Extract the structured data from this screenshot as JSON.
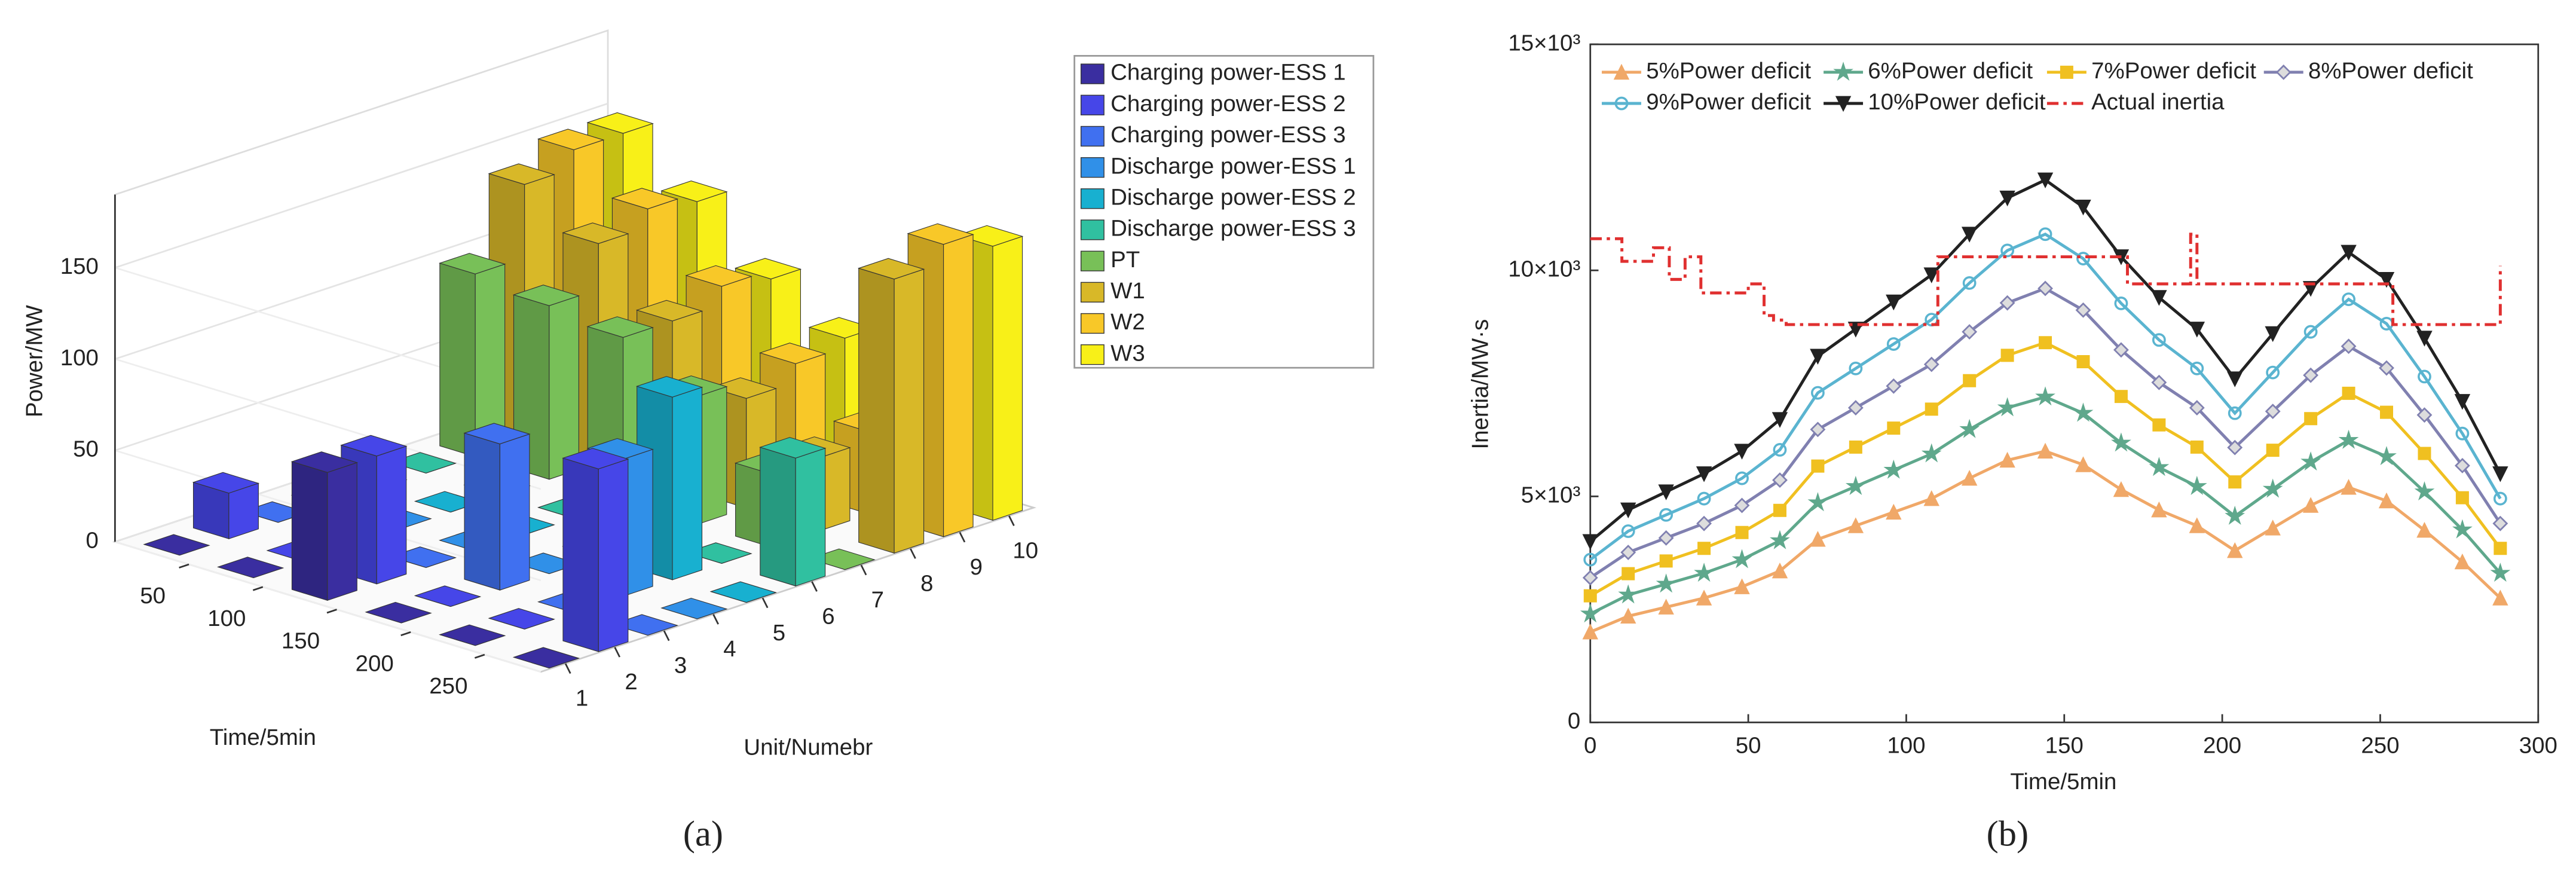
{
  "chart_data": [
    {
      "type": "bar3d",
      "caption": "(a)",
      "x_label": "Time/5min",
      "y_label": "Unit/Numebr",
      "z_label": "Power/MW",
      "x": [
        25,
        75,
        125,
        175,
        225,
        275
      ],
      "xlim": [
        0,
        288
      ],
      "xticks": [
        50,
        100,
        150,
        200,
        250
      ],
      "yticks": [
        1,
        2,
        3,
        4,
        5,
        6,
        7,
        8,
        9,
        10
      ],
      "zlim": [
        0,
        190
      ],
      "zticks": [
        0,
        50,
        100,
        150
      ],
      "series": [
        {
          "name": "Charging power-ESS 1",
          "color": "#3a2ea0",
          "values": [
            0,
            0,
            70,
            0,
            0,
            0
          ]
        },
        {
          "name": "Charging power-ESS 2",
          "color": "#4646e8",
          "values": [
            25,
            0,
            70,
            0,
            0,
            100
          ]
        },
        {
          "name": "Charging power-ESS 3",
          "color": "#4070f0",
          "values": [
            0,
            30,
            0,
            80,
            0,
            0
          ]
        },
        {
          "name": "Discharge power-ESS 1",
          "color": "#3090e8",
          "values": [
            0,
            0,
            0,
            0,
            75,
            0
          ]
        },
        {
          "name": "Discharge power-ESS 2",
          "color": "#18b0d0",
          "values": [
            0,
            0,
            0,
            0,
            100,
            0
          ]
        },
        {
          "name": "Discharge power-ESS 3",
          "color": "#30c0a0",
          "values": [
            0,
            0,
            0,
            0,
            0,
            70
          ]
        },
        {
          "name": "PT",
          "color": "#78c058",
          "values": [
            100,
            95,
            90,
            70,
            40,
            0
          ]
        },
        {
          "name": "W1",
          "color": "#d8b828",
          "values": [
            140,
            120,
            90,
            60,
            40,
            150
          ]
        },
        {
          "name": "W2",
          "color": "#f8c828",
          "values": [
            150,
            130,
            100,
            70,
            45,
            160
          ]
        },
        {
          "name": "W3",
          "color": "#f8f018",
          "values": [
            150,
            125,
            95,
            75,
            50,
            150
          ]
        }
      ]
    },
    {
      "type": "line",
      "caption": "(b)",
      "x_label": "Time/5min",
      "y_label": "Inertia/MW·s",
      "x": [
        0,
        12,
        24,
        36,
        48,
        60,
        72,
        84,
        96,
        108,
        120,
        132,
        144,
        156,
        168,
        180,
        192,
        204,
        216,
        228,
        240,
        252,
        264,
        276,
        288
      ],
      "xlim": [
        0,
        300
      ],
      "xticks": [
        0,
        50,
        100,
        150,
        200,
        250,
        300
      ],
      "ylim": [
        0,
        15000
      ],
      "yticks": [
        0,
        {
          "value": 5000,
          "label": "5×10³"
        },
        {
          "value": 10000,
          "label": "10×10³"
        },
        {
          "value": 15000,
          "label": "15×10³"
        }
      ],
      "series": [
        {
          "name": "5%Power deficit",
          "color": "#f0a868",
          "marker": "triangle",
          "values": [
            2000,
            2350,
            2550,
            2750,
            3000,
            3350,
            4050,
            4350,
            4650,
            4950,
            5400,
            5800,
            6000,
            5700,
            5150,
            4700,
            4350,
            3800,
            4300,
            4800,
            5200,
            4900,
            4250,
            3550,
            2750
          ]
        },
        {
          "name": "6%Power deficit",
          "color": "#5fa88c",
          "marker": "star",
          "values": [
            2400,
            2820,
            3060,
            3300,
            3600,
            4020,
            4860,
            5220,
            5580,
            5940,
            6480,
            6960,
            7200,
            6840,
            6180,
            5640,
            5220,
            4560,
            5160,
            5760,
            6240,
            5880,
            5100,
            4260,
            3300
          ]
        },
        {
          "name": "7%Power deficit",
          "color": "#f0c020",
          "marker": "square",
          "values": [
            2800,
            3290,
            3570,
            3850,
            4200,
            4690,
            5670,
            6090,
            6510,
            6930,
            7560,
            8120,
            8400,
            7980,
            7210,
            6580,
            6090,
            5320,
            6020,
            6720,
            7280,
            6860,
            5950,
            4970,
            3850
          ]
        },
        {
          "name": "8%Power deficit",
          "color": "#8080b0",
          "marker": "diamond",
          "values": [
            3200,
            3760,
            4080,
            4400,
            4800,
            5360,
            6480,
            6960,
            7440,
            7920,
            8640,
            9280,
            9600,
            9120,
            8240,
            7520,
            6960,
            6080,
            6880,
            7680,
            8320,
            7840,
            6800,
            5680,
            4400
          ]
        },
        {
          "name": "9%Power deficit",
          "color": "#5ab4d0",
          "marker": "circle",
          "values": [
            3600,
            4230,
            4590,
            4950,
            5400,
            6030,
            7290,
            7830,
            8370,
            8910,
            9720,
            10440,
            10800,
            10260,
            9270,
            8460,
            7830,
            6840,
            7740,
            8640,
            9360,
            8820,
            7650,
            6390,
            4950
          ]
        },
        {
          "name": "10%Power deficit",
          "color": "#222222",
          "marker": "triangle-down",
          "values": [
            4000,
            4700,
            5100,
            5500,
            6000,
            6700,
            8100,
            8700,
            9300,
            9900,
            10800,
            11600,
            12000,
            11400,
            10300,
            9400,
            8700,
            7600,
            8600,
            9600,
            10400,
            9800,
            8500,
            7100,
            5500
          ]
        },
        {
          "name": "Actual inertia",
          "color": "#e03030",
          "dashed": true,
          "step": true,
          "x": [
            0,
            10,
            20,
            25,
            30,
            35,
            40,
            50,
            55,
            58,
            62,
            110,
            170,
            188,
            190,
            192,
            254,
            286,
            288
          ],
          "values": [
            10700,
            10200,
            10500,
            9800,
            10300,
            9500,
            9500,
            9700,
            9000,
            8900,
            8800,
            10300,
            9700,
            9700,
            10800,
            9700,
            8800,
            8800,
            10100
          ]
        }
      ]
    }
  ]
}
